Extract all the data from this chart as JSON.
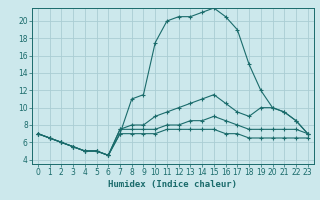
{
  "xlabel": "Humidex (Indice chaleur)",
  "bg_color": "#cce8ec",
  "grid_color": "#aacdd4",
  "line_color": "#1a6b6b",
  "xlim": [
    -0.5,
    23.5
  ],
  "ylim": [
    3.5,
    21.5
  ],
  "yticks": [
    4,
    6,
    8,
    10,
    12,
    14,
    16,
    18,
    20
  ],
  "xticks": [
    0,
    1,
    2,
    3,
    4,
    5,
    6,
    7,
    8,
    9,
    10,
    11,
    12,
    13,
    14,
    15,
    16,
    17,
    18,
    19,
    20,
    21,
    22,
    23
  ],
  "line1_x": [
    0,
    1,
    2,
    3,
    4,
    5,
    6,
    7,
    8,
    9,
    10,
    11,
    12,
    13,
    14,
    15,
    16,
    17,
    18,
    19,
    20,
    21,
    22,
    23
  ],
  "line1_y": [
    7,
    6.5,
    6,
    5.5,
    5,
    5,
    4.5,
    7,
    11,
    11.5,
    17.5,
    20,
    20.5,
    20.5,
    21,
    21.5,
    20.5,
    19,
    15,
    12,
    10,
    9.5,
    8.5,
    7
  ],
  "line2_x": [
    0,
    1,
    2,
    3,
    4,
    5,
    6,
    7,
    8,
    9,
    10,
    11,
    12,
    13,
    14,
    15,
    16,
    17,
    18,
    19,
    20,
    21,
    22,
    23
  ],
  "line2_y": [
    7,
    6.5,
    6,
    5.5,
    5,
    5,
    4.5,
    7.5,
    8,
    8,
    9,
    9.5,
    10,
    10.5,
    11,
    11.5,
    10.5,
    9.5,
    9,
    10,
    10,
    9.5,
    8.5,
    7
  ],
  "line3_x": [
    0,
    1,
    2,
    3,
    4,
    5,
    6,
    7,
    8,
    9,
    10,
    11,
    12,
    13,
    14,
    15,
    16,
    17,
    18,
    19,
    20,
    21,
    22,
    23
  ],
  "line3_y": [
    7,
    6.5,
    6,
    5.5,
    5,
    5,
    4.5,
    7.5,
    7.5,
    7.5,
    7.5,
    8,
    8,
    8.5,
    8.5,
    9,
    8.5,
    8,
    7.5,
    7.5,
    7.5,
    7.5,
    7.5,
    7
  ],
  "line4_x": [
    0,
    1,
    2,
    3,
    4,
    5,
    6,
    7,
    8,
    9,
    10,
    11,
    12,
    13,
    14,
    15,
    16,
    17,
    18,
    19,
    20,
    21,
    22,
    23
  ],
  "line4_y": [
    7,
    6.5,
    6,
    5.5,
    5,
    5,
    4.5,
    7,
    7,
    7,
    7,
    7.5,
    7.5,
    7.5,
    7.5,
    7.5,
    7,
    7,
    6.5,
    6.5,
    6.5,
    6.5,
    6.5,
    6.5
  ]
}
